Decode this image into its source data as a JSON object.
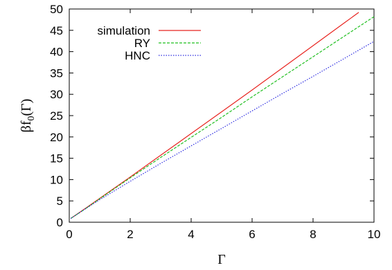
{
  "chart_data": {
    "type": "line",
    "xlabel": "Γ",
    "ylabel": "βf",
    "ylabel_sub": "0",
    "ylabel_tail": "(Γ)",
    "xlim": [
      0,
      10
    ],
    "ylim": [
      0,
      50
    ],
    "xticks": [
      0,
      2,
      4,
      6,
      8,
      10
    ],
    "yticks": [
      0,
      5,
      10,
      15,
      20,
      25,
      30,
      35,
      40,
      45,
      50
    ],
    "grid": false,
    "legend_position": "top-left",
    "series": [
      {
        "name": "simulation",
        "color": "#e8231f",
        "style": "solid",
        "points": [
          [
            0.05,
            0.9
          ],
          [
            0.5,
            3.1
          ],
          [
            1,
            5.6
          ],
          [
            2,
            10.6
          ],
          [
            3,
            15.7
          ],
          [
            4,
            20.8
          ],
          [
            5,
            25.9
          ],
          [
            6,
            31.0
          ],
          [
            7,
            36.2
          ],
          [
            8,
            41.4
          ],
          [
            9,
            46.6
          ],
          [
            9.5,
            49.2
          ]
        ]
      },
      {
        "name": "RY",
        "color": "#1fbf1f",
        "style": "dashed",
        "points": [
          [
            0.05,
            0.9
          ],
          [
            0.5,
            3.0
          ],
          [
            1,
            5.5
          ],
          [
            2,
            10.4
          ],
          [
            3,
            15.2
          ],
          [
            4,
            19.9
          ],
          [
            5,
            24.6
          ],
          [
            6,
            29.4
          ],
          [
            7,
            34.1
          ],
          [
            8,
            38.8
          ],
          [
            9,
            43.5
          ],
          [
            10,
            48.2
          ]
        ]
      },
      {
        "name": "HNC",
        "color": "#2a2ae0",
        "style": "dotted",
        "points": [
          [
            0.05,
            0.9
          ],
          [
            0.5,
            3.0
          ],
          [
            1,
            5.3
          ],
          [
            2,
            9.6
          ],
          [
            3,
            13.8
          ],
          [
            4,
            17.9
          ],
          [
            5,
            22.0
          ],
          [
            6,
            26.1
          ],
          [
            7,
            30.2
          ],
          [
            8,
            34.2
          ],
          [
            9,
            38.3
          ],
          [
            10,
            42.4
          ]
        ]
      }
    ]
  }
}
